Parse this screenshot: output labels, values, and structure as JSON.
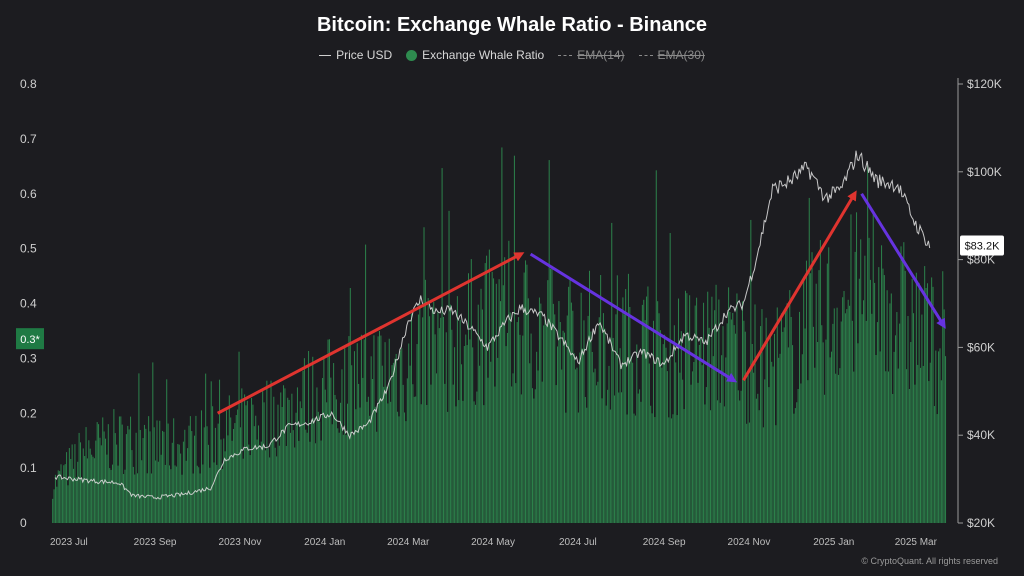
{
  "title": "Bitcoin: Exchange Whale Ratio - Binance",
  "legend": [
    {
      "label": "Price USD",
      "style": "line",
      "enabled": true
    },
    {
      "label": "Exchange Whale Ratio",
      "style": "dot",
      "enabled": true
    },
    {
      "label": "EMA(14)",
      "style": "dashed",
      "enabled": false
    },
    {
      "label": "EMA(30)",
      "style": "dashed",
      "enabled": false
    }
  ],
  "footer": "© CryptoQuant. All rights reserved",
  "colors": {
    "background": "#1c1c20",
    "bar": "#2e8b4f",
    "price_line": "#d9d9d9",
    "up_arrow": "#e0342f",
    "down_arrow": "#6633e0",
    "ratio_badge": "#1f7a44"
  },
  "chart_data": {
    "type": "bar",
    "x_ticks": [
      "2023 Jul",
      "2023 Sep",
      "2023 Nov",
      "2024 Jan",
      "2024 Mar",
      "2024 May",
      "2024 Jul",
      "2024 Sep",
      "2024 Nov",
      "2025 Jan",
      "2025 Mar"
    ],
    "left_axis": {
      "ticks": [
        "0",
        "0.1",
        "0.2",
        "0.3",
        "0.4",
        "0.5",
        "0.6",
        "0.7",
        "0.8"
      ],
      "ylim": [
        0,
        0.8
      ]
    },
    "right_axis": {
      "ticks": [
        "$20K",
        "$40K",
        "$60K",
        "$80K",
        "$100K",
        "$120K"
      ],
      "ylim": [
        20000,
        120000
      ]
    },
    "current_values": {
      "whale_ratio": "0.3*",
      "price": "$83.2K"
    },
    "series": [
      {
        "name": "Exchange Whale Ratio",
        "axis": "left",
        "x": [
          "2023-06-25",
          "2023-07-15",
          "2023-08-05",
          "2023-08-25",
          "2023-09-15",
          "2023-10-05",
          "2023-10-25",
          "2023-11-15",
          "2023-12-05",
          "2023-12-25",
          "2024-01-15",
          "2024-02-05",
          "2024-02-25",
          "2024-03-15",
          "2024-04-05",
          "2024-04-25",
          "2024-05-15",
          "2024-06-05",
          "2024-06-25",
          "2024-07-15",
          "2024-08-05",
          "2024-08-25",
          "2024-09-15",
          "2024-10-05",
          "2024-10-25",
          "2024-11-15",
          "2024-12-05",
          "2024-12-25",
          "2025-01-15",
          "2025-02-05",
          "2025-02-25",
          "2025-03-15"
        ],
        "values": [
          0.08,
          0.14,
          0.16,
          0.16,
          0.15,
          0.16,
          0.18,
          0.2,
          0.22,
          0.25,
          0.27,
          0.29,
          0.3,
          0.34,
          0.36,
          0.38,
          0.4,
          0.38,
          0.36,
          0.36,
          0.36,
          0.35,
          0.34,
          0.34,
          0.35,
          0.3,
          0.34,
          0.4,
          0.44,
          0.44,
          0.4,
          0.36
        ]
      },
      {
        "name": "Price USD",
        "axis": "right",
        "x": [
          "2023-06-25",
          "2023-07-10",
          "2023-07-25",
          "2023-08-10",
          "2023-08-20",
          "2023-09-05",
          "2023-09-25",
          "2023-10-15",
          "2023-10-25",
          "2023-11-10",
          "2023-11-25",
          "2023-12-10",
          "2023-12-25",
          "2024-01-10",
          "2024-01-23",
          "2024-02-05",
          "2024-02-20",
          "2024-03-05",
          "2024-03-14",
          "2024-03-25",
          "2024-04-05",
          "2024-04-20",
          "2024-05-01",
          "2024-05-15",
          "2024-05-25",
          "2024-06-10",
          "2024-06-25",
          "2024-07-05",
          "2024-07-20",
          "2024-08-05",
          "2024-08-20",
          "2024-09-05",
          "2024-09-20",
          "2024-10-05",
          "2024-10-20",
          "2024-11-01",
          "2024-11-10",
          "2024-11-22",
          "2024-12-05",
          "2024-12-17",
          "2024-12-30",
          "2025-01-10",
          "2025-01-22",
          "2025-02-05",
          "2025-02-20",
          "2025-03-05",
          "2025-03-15"
        ],
        "values": [
          30500,
          30000,
          29500,
          29200,
          26200,
          25800,
          26500,
          28000,
          34500,
          37000,
          37500,
          42000,
          43000,
          45000,
          40000,
          42500,
          51000,
          66000,
          71000,
          68000,
          68500,
          64000,
          60000,
          66000,
          69000,
          67000,
          61000,
          56500,
          66000,
          56000,
          59000,
          56000,
          63000,
          61000,
          68000,
          70000,
          80000,
          96000,
          98000,
          101000,
          94000,
          96000,
          104000,
          98000,
          97000,
          88000,
          83200
        ]
      }
    ],
    "annotations": [
      {
        "type": "arrow",
        "color": "red",
        "from": [
          "2023-10-20",
          0.2
        ],
        "to": [
          "2024-05-25",
          0.49
        ]
      },
      {
        "type": "arrow",
        "color": "purple",
        "from": [
          "2024-06-01",
          0.49
        ],
        "to": [
          "2024-10-25",
          0.26
        ]
      },
      {
        "type": "arrow",
        "color": "red",
        "from": [
          "2024-11-01",
          0.26
        ],
        "to": [
          "2025-01-20",
          0.6
        ]
      },
      {
        "type": "arrow",
        "color": "purple",
        "from": [
          "2025-01-25",
          0.6
        ],
        "to": [
          "2025-03-25",
          0.36
        ]
      }
    ],
    "grid": false
  }
}
